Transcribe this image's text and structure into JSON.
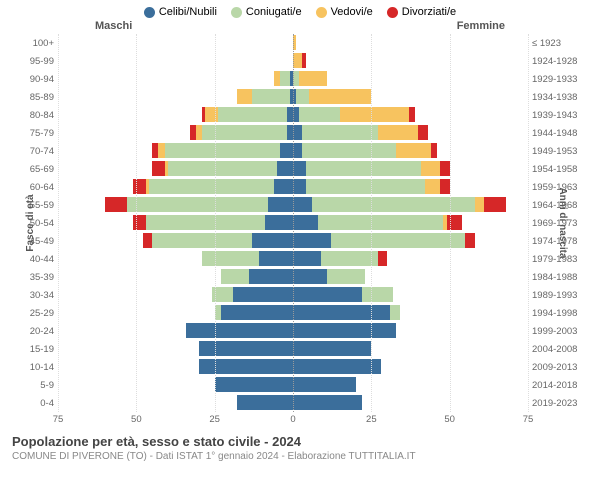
{
  "title": "Popolazione per età, sesso e stato civile - 2024",
  "subtitle": "COMUNE DI PIVERONE (TO) - Dati ISTAT 1° gennaio 2024 - Elaborazione TUTTITALIA.IT",
  "legend": [
    {
      "label": "Celibi/Nubili",
      "color": "#3b6e9b"
    },
    {
      "label": "Coniugati/e",
      "color": "#b9d7a8"
    },
    {
      "label": "Vedovi/e",
      "color": "#f7c35f"
    },
    {
      "label": "Divorziati/e",
      "color": "#d62728"
    }
  ],
  "male_header": "Maschi",
  "female_header": "Femmine",
  "y_left_title": "Fasce di età",
  "y_right_title": "Anni di nascita",
  "x_ticks": [
    75,
    50,
    25,
    0,
    25,
    50,
    75
  ],
  "x_max": 75,
  "colors": {
    "celibi": "#3b6e9b",
    "coniugati": "#b9d7a8",
    "vedovi": "#f7c35f",
    "divorziati": "#d62728",
    "grid": "#dddddd",
    "center": "#999999",
    "bg": "#ffffff"
  },
  "rows": [
    {
      "age": "100+",
      "birth": "≤ 1923",
      "m": {
        "cel": 0,
        "con": 0,
        "ved": 0,
        "div": 0
      },
      "f": {
        "cel": 0,
        "con": 0,
        "ved": 1,
        "div": 0
      }
    },
    {
      "age": "95-99",
      "birth": "1924-1928",
      "m": {
        "cel": 0,
        "con": 0,
        "ved": 0,
        "div": 0
      },
      "f": {
        "cel": 0,
        "con": 0,
        "ved": 3,
        "div": 1
      }
    },
    {
      "age": "90-94",
      "birth": "1929-1933",
      "m": {
        "cel": 1,
        "con": 3,
        "ved": 2,
        "div": 0
      },
      "f": {
        "cel": 0,
        "con": 2,
        "ved": 9,
        "div": 0
      }
    },
    {
      "age": "85-89",
      "birth": "1934-1938",
      "m": {
        "cel": 1,
        "con": 12,
        "ved": 5,
        "div": 0
      },
      "f": {
        "cel": 1,
        "con": 4,
        "ved": 20,
        "div": 0
      }
    },
    {
      "age": "80-84",
      "birth": "1939-1943",
      "m": {
        "cel": 2,
        "con": 22,
        "ved": 4,
        "div": 1
      },
      "f": {
        "cel": 2,
        "con": 13,
        "ved": 22,
        "div": 2
      }
    },
    {
      "age": "75-79",
      "birth": "1944-1948",
      "m": {
        "cel": 2,
        "con": 27,
        "ved": 2,
        "div": 2
      },
      "f": {
        "cel": 3,
        "con": 24,
        "ved": 13,
        "div": 3
      }
    },
    {
      "age": "70-74",
      "birth": "1949-1953",
      "m": {
        "cel": 4,
        "con": 37,
        "ved": 2,
        "div": 2
      },
      "f": {
        "cel": 3,
        "con": 30,
        "ved": 11,
        "div": 2
      }
    },
    {
      "age": "65-69",
      "birth": "1954-1958",
      "m": {
        "cel": 5,
        "con": 35,
        "ved": 1,
        "div": 4
      },
      "f": {
        "cel": 4,
        "con": 37,
        "ved": 6,
        "div": 3
      }
    },
    {
      "age": "60-64",
      "birth": "1959-1963",
      "m": {
        "cel": 6,
        "con": 40,
        "ved": 1,
        "div": 4
      },
      "f": {
        "cel": 4,
        "con": 38,
        "ved": 5,
        "div": 3
      }
    },
    {
      "age": "55-59",
      "birth": "1964-1968",
      "m": {
        "cel": 8,
        "con": 45,
        "ved": 0,
        "div": 7
      },
      "f": {
        "cel": 6,
        "con": 52,
        "ved": 3,
        "div": 7
      }
    },
    {
      "age": "50-54",
      "birth": "1969-1973",
      "m": {
        "cel": 9,
        "con": 38,
        "ved": 0,
        "div": 4
      },
      "f": {
        "cel": 8,
        "con": 40,
        "ved": 1,
        "div": 5
      }
    },
    {
      "age": "45-49",
      "birth": "1974-1978",
      "m": {
        "cel": 13,
        "con": 32,
        "ved": 0,
        "div": 3
      },
      "f": {
        "cel": 12,
        "con": 43,
        "ved": 0,
        "div": 3
      }
    },
    {
      "age": "40-44",
      "birth": "1979-1983",
      "m": {
        "cel": 11,
        "con": 18,
        "ved": 0,
        "div": 0
      },
      "f": {
        "cel": 9,
        "con": 18,
        "ved": 0,
        "div": 3
      }
    },
    {
      "age": "35-39",
      "birth": "1984-1988",
      "m": {
        "cel": 14,
        "con": 9,
        "ved": 0,
        "div": 0
      },
      "f": {
        "cel": 11,
        "con": 12,
        "ved": 0,
        "div": 0
      }
    },
    {
      "age": "30-34",
      "birth": "1989-1993",
      "m": {
        "cel": 19,
        "con": 7,
        "ved": 0,
        "div": 0
      },
      "f": {
        "cel": 22,
        "con": 10,
        "ved": 0,
        "div": 0
      }
    },
    {
      "age": "25-29",
      "birth": "1994-1998",
      "m": {
        "cel": 23,
        "con": 2,
        "ved": 0,
        "div": 0
      },
      "f": {
        "cel": 31,
        "con": 3,
        "ved": 0,
        "div": 0
      }
    },
    {
      "age": "20-24",
      "birth": "1999-2003",
      "m": {
        "cel": 34,
        "con": 0,
        "ved": 0,
        "div": 0
      },
      "f": {
        "cel": 33,
        "con": 0,
        "ved": 0,
        "div": 0
      }
    },
    {
      "age": "15-19",
      "birth": "2004-2008",
      "m": {
        "cel": 30,
        "con": 0,
        "ved": 0,
        "div": 0
      },
      "f": {
        "cel": 25,
        "con": 0,
        "ved": 0,
        "div": 0
      }
    },
    {
      "age": "10-14",
      "birth": "2009-2013",
      "m": {
        "cel": 30,
        "con": 0,
        "ved": 0,
        "div": 0
      },
      "f": {
        "cel": 28,
        "con": 0,
        "ved": 0,
        "div": 0
      }
    },
    {
      "age": "5-9",
      "birth": "2014-2018",
      "m": {
        "cel": 25,
        "con": 0,
        "ved": 0,
        "div": 0
      },
      "f": {
        "cel": 20,
        "con": 0,
        "ved": 0,
        "div": 0
      }
    },
    {
      "age": "0-4",
      "birth": "2019-2023",
      "m": {
        "cel": 18,
        "con": 0,
        "ved": 0,
        "div": 0
      },
      "f": {
        "cel": 22,
        "con": 0,
        "ved": 0,
        "div": 0
      }
    }
  ]
}
